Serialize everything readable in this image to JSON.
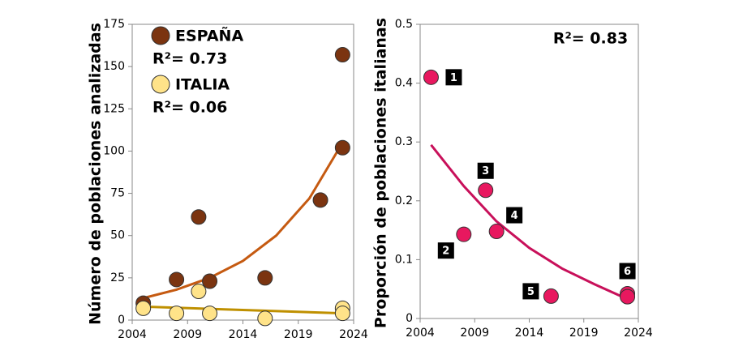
{
  "chart_data": [
    {
      "type": "scatter",
      "y_label": "Número de poblaciones analizadas",
      "xlim": [
        2004,
        2024
      ],
      "xticks": [
        2004,
        2009,
        2014,
        2019,
        2024
      ],
      "ylim": [
        0,
        175
      ],
      "yticks": [
        0,
        25,
        50,
        75,
        100,
        125,
        150,
        175
      ],
      "series": [
        {
          "name": "ESPAÑA",
          "r2": "R²= 0.73",
          "color": "#7b3410",
          "text_color": "#c55a11",
          "x": [
            2005,
            2008,
            2010,
            2011,
            2016,
            2021,
            2023,
            2023
          ],
          "values": [
            10,
            24,
            61,
            23,
            25,
            71,
            102,
            157
          ],
          "trend": {
            "color": "#c55a11",
            "x": [
              2005,
              2008,
              2011,
              2014,
              2017,
              2020,
              2023
            ],
            "values": [
              13,
              18,
              25,
              35,
              50,
              72,
              105
            ]
          }
        },
        {
          "name": "ITALIA",
          "r2": "R²= 0.06",
          "color": "#ffe389",
          "text_color": "#bf9000",
          "x": [
            2005,
            2008,
            2010,
            2011,
            2016,
            2023,
            2023
          ],
          "values": [
            7,
            4,
            17,
            4,
            1,
            7,
            4
          ],
          "trend": {
            "color": "#bf9000",
            "x": [
              2005,
              2023
            ],
            "values": [
              8,
              4
            ]
          }
        }
      ]
    },
    {
      "type": "scatter",
      "y_label": "Proporción de poblaciones italianas",
      "annotation": "R²= 0.83",
      "annotation_color": "#cc0066",
      "xlim": [
        2004,
        2024
      ],
      "xticks": [
        2004,
        2009,
        2014,
        2019,
        2024
      ],
      "ylim": [
        0,
        0.5
      ],
      "yticks": [
        0,
        0.1,
        0.2,
        0.3,
        0.4,
        0.5
      ],
      "series": [
        {
          "color": "#e8185f",
          "x": [
            2005,
            2008,
            2010,
            2011,
            2016,
            2023,
            2023
          ],
          "values": [
            0.41,
            0.143,
            0.218,
            0.148,
            0.038,
            0.042,
            0.037
          ],
          "point_labels": [
            "1",
            "2",
            "3",
            "4",
            "5",
            "6",
            null
          ],
          "trend": {
            "color": "#c8105a",
            "x": [
              2005,
              2008,
              2011,
              2014,
              2017,
              2020,
              2023
            ],
            "values": [
              0.295,
              0.225,
              0.165,
              0.12,
              0.085,
              0.058,
              0.033
            ]
          }
        }
      ]
    }
  ]
}
